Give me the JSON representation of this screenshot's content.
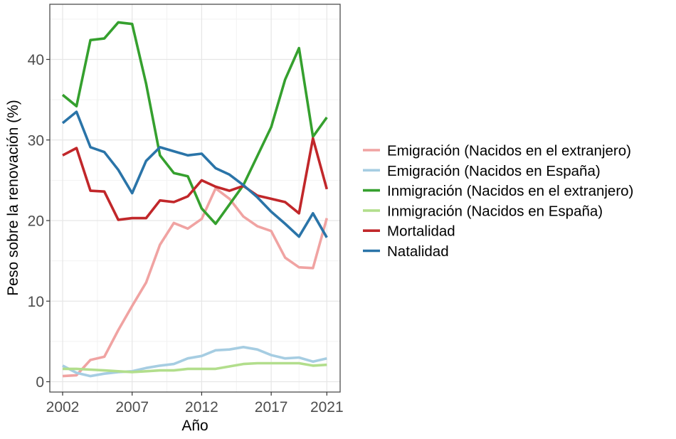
{
  "chart_data": {
    "type": "line",
    "title": "",
    "xlabel": "Año",
    "ylabel": "Peso sobre la renovación (%)",
    "x": [
      2002,
      2003,
      2004,
      2005,
      2006,
      2007,
      2008,
      2009,
      2010,
      2011,
      2012,
      2013,
      2014,
      2015,
      2016,
      2017,
      2018,
      2019,
      2020,
      2021
    ],
    "x_ticks": [
      2002,
      2007,
      2012,
      2017,
      2021
    ],
    "x_minor_gridlines": [
      2004.5,
      2009.5,
      2014.5,
      2019
    ],
    "xlim": [
      2001,
      2022
    ],
    "y_ticks": [
      0,
      10,
      20,
      30,
      40
    ],
    "y_minor_gridlines": [
      5,
      15,
      25,
      35,
      45
    ],
    "ylim": [
      -1.3,
      46.5
    ],
    "grid": true,
    "legend_position": "right",
    "series": [
      {
        "name": "Emigración (Nacidos en el extranjero)",
        "color": "#f0a3a2",
        "values": [
          0.7,
          0.8,
          2.7,
          3.1,
          6.4,
          9.4,
          12.3,
          17.0,
          19.7,
          19.0,
          20.2,
          24.0,
          22.7,
          20.5,
          19.3,
          18.7,
          15.4,
          14.2,
          14.1,
          20.3
        ]
      },
      {
        "name": "Emigración (Nacidos en España)",
        "color": "#a6cde2",
        "values": [
          2.0,
          1.1,
          0.7,
          1.0,
          1.2,
          1.3,
          1.7,
          2.0,
          2.2,
          2.9,
          3.2,
          3.9,
          4.0,
          4.3,
          4.0,
          3.3,
          2.9,
          3.0,
          2.5,
          2.9
        ]
      },
      {
        "name": "Inmigración (Nacidos en el extranjero)",
        "color": "#35a02e",
        "values": [
          35.6,
          34.2,
          42.4,
          42.6,
          44.6,
          44.4,
          37.0,
          28.1,
          25.9,
          25.5,
          21.5,
          19.6,
          22.0,
          24.4,
          28.0,
          31.6,
          37.5,
          41.4,
          30.4,
          32.8
        ]
      },
      {
        "name": "Inmigración (Nacidos en España)",
        "color": "#b2de8c",
        "values": [
          1.6,
          1.6,
          1.5,
          1.4,
          1.3,
          1.2,
          1.3,
          1.4,
          1.4,
          1.6,
          1.6,
          1.6,
          1.9,
          2.2,
          2.3,
          2.3,
          2.3,
          2.3,
          2.0,
          2.1
        ]
      },
      {
        "name": "Mortalidad",
        "color": "#c1272a",
        "values": [
          28.1,
          29.0,
          23.7,
          23.6,
          20.1,
          20.3,
          20.3,
          22.5,
          22.3,
          23.0,
          25.0,
          24.2,
          23.7,
          24.3,
          23.1,
          22.7,
          22.3,
          20.9,
          30.2,
          23.9
        ]
      },
      {
        "name": "Natalidad",
        "color": "#2a74a8",
        "values": [
          32.1,
          33.5,
          29.1,
          28.5,
          26.3,
          23.4,
          27.4,
          29.1,
          28.6,
          28.1,
          28.3,
          26.5,
          25.7,
          24.4,
          22.9,
          21.1,
          19.6,
          18.0,
          20.9,
          17.9
        ]
      }
    ]
  }
}
